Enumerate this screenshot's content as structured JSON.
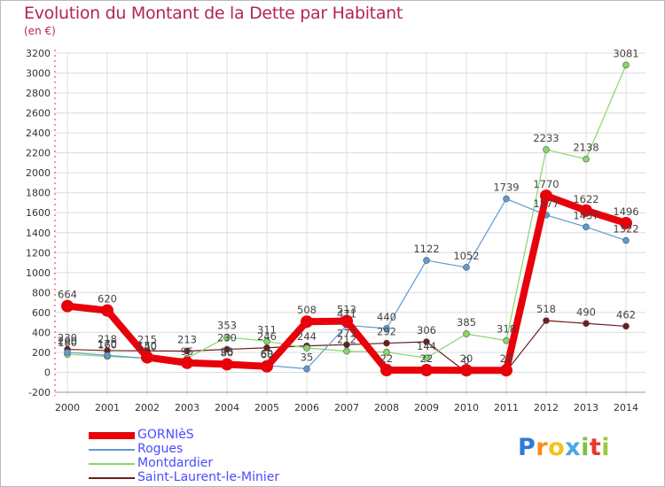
{
  "title": "Evolution du Montant de la Dette par Habitant",
  "subtitle": "(en €)",
  "logo_text": "Proxiti",
  "chart_data": {
    "type": "line",
    "title": "Evolution du Montant de la Dette par Habitant",
    "ylabel": "(en €)",
    "x": [
      "2000",
      "2001",
      "2002",
      "2003",
      "2004",
      "2005",
      "2006",
      "2007",
      "2008",
      "2009",
      "2010",
      "2011",
      "2012",
      "2013",
      "2014"
    ],
    "ylim": [
      -200,
      3200
    ],
    "yticks": [
      "3200",
      "3000",
      "2800",
      "2600",
      "2400",
      "2200",
      "2000",
      "1800",
      "1600",
      "1400",
      "1200",
      "1000",
      "800",
      "600",
      "400",
      "200",
      "0",
      "-200"
    ],
    "grid": true,
    "legend_position": "bottom-left",
    "series": [
      {
        "name": "GORNIèS",
        "color": "#e8000b",
        "values": [
          664,
          620,
          150,
          95,
          80,
          60,
          508,
          513,
          22,
          22,
          20,
          20,
          1770,
          1622,
          1496
        ],
        "labels": [
          "664",
          "620",
          "150",
          "95",
          "80",
          "60",
          "508",
          "513",
          "22",
          "22",
          "20",
          "20",
          "1770",
          "1622",
          "1496"
        ]
      },
      {
        "name": "Rogues",
        "color": "#5b9bd5",
        "values": [
          200,
          170,
          140,
          100,
          93,
          69,
          35,
          471,
          440,
          1122,
          1052,
          1739,
          1577,
          1457,
          1322
        ],
        "labels": [
          "200",
          "170",
          "140",
          "",
          "93",
          "69",
          "35",
          "471",
          "440",
          "1122",
          "1052",
          "1739",
          "1577",
          "1457",
          "1322"
        ]
      },
      {
        "name": "Montdardier",
        "color": "#84d86a",
        "values": [
          180,
          160,
          140,
          140,
          353,
          311,
          244,
          212,
          202,
          144,
          385,
          318,
          2233,
          2138,
          3081
        ],
        "labels": [
          "180",
          "160",
          "",
          "",
          "353",
          "311",
          "244",
          "212",
          "",
          "144",
          "385",
          "318",
          "2233",
          "2138",
          "3081"
        ]
      },
      {
        "name": "Saint-Laurent-le-Minier",
        "color": "#6a1f1f",
        "values": [
          230,
          218,
          215,
          213,
          230,
          246,
          265,
          277,
          292,
          306,
          0,
          10,
          518,
          490,
          462
        ],
        "labels": [
          "230",
          "218",
          "215",
          "213",
          "230",
          "246",
          "",
          "277",
          "292",
          "306",
          "0",
          "",
          "518",
          "490",
          "462"
        ]
      }
    ]
  }
}
